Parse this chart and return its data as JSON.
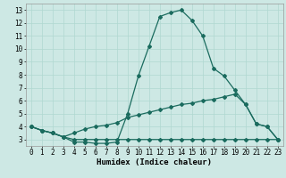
{
  "xlabel": "Humidex (Indice chaleur)",
  "ylabel": "",
  "bg_color": "#cde8e4",
  "grid_color": "#b0d8d0",
  "line_color": "#1a6b5e",
  "line1_x": [
    0,
    1,
    2,
    3,
    4,
    5,
    6,
    7,
    8,
    9,
    10,
    11,
    12,
    13,
    14,
    15,
    16,
    17,
    18,
    19,
    20,
    21,
    22,
    23
  ],
  "line1_y": [
    4.0,
    3.7,
    3.5,
    3.2,
    2.8,
    2.8,
    2.7,
    2.7,
    2.8,
    5.0,
    7.9,
    10.2,
    12.5,
    12.8,
    13.0,
    12.2,
    11.0,
    8.5,
    7.9,
    6.8,
    5.7,
    4.2,
    4.0,
    3.0
  ],
  "line2_x": [
    0,
    1,
    2,
    3,
    4,
    5,
    6,
    7,
    8,
    9,
    10,
    11,
    12,
    13,
    14,
    15,
    16,
    17,
    18,
    19,
    20,
    21,
    22,
    23
  ],
  "line2_y": [
    4.0,
    3.7,
    3.5,
    3.2,
    3.5,
    3.8,
    4.0,
    4.1,
    4.3,
    4.7,
    4.9,
    5.1,
    5.3,
    5.5,
    5.7,
    5.8,
    6.0,
    6.1,
    6.3,
    6.5,
    5.7,
    4.2,
    4.0,
    3.0
  ],
  "line3_x": [
    0,
    1,
    2,
    3,
    4,
    5,
    6,
    7,
    8,
    9,
    10,
    11,
    12,
    13,
    14,
    15,
    16,
    17,
    18,
    19,
    20,
    21,
    22,
    23
  ],
  "line3_y": [
    4.0,
    3.7,
    3.5,
    3.2,
    3.0,
    3.0,
    3.0,
    3.0,
    3.0,
    3.0,
    3.0,
    3.0,
    3.0,
    3.0,
    3.0,
    3.0,
    3.0,
    3.0,
    3.0,
    3.0,
    3.0,
    3.0,
    3.0,
    3.0
  ],
  "xlim": [
    -0.5,
    23.5
  ],
  "ylim": [
    2.5,
    13.5
  ],
  "xticks": [
    0,
    1,
    2,
    3,
    4,
    5,
    6,
    7,
    8,
    9,
    10,
    11,
    12,
    13,
    14,
    15,
    16,
    17,
    18,
    19,
    20,
    21,
    22,
    23
  ],
  "yticks": [
    3,
    4,
    5,
    6,
    7,
    8,
    9,
    10,
    11,
    12,
    13
  ],
  "tick_fontsize": 5.5,
  "label_fontsize": 6.5
}
